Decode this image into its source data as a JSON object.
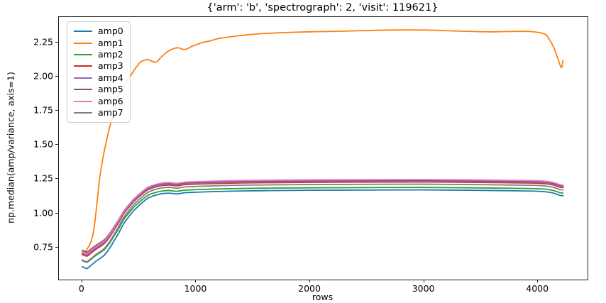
{
  "chart_data": {
    "type": "line",
    "title": "{'arm': 'b', 'spectrograph': 2, 'visit': 119621}",
    "xlabel": "rows",
    "ylabel": "np.median(amp/variance, axis=1)",
    "xlim": [
      -205,
      4435
    ],
    "ylim": [
      0.515,
      2.435
    ],
    "xticks": [
      0,
      1000,
      2000,
      3000,
      4000
    ],
    "yticks": [
      0.75,
      1.0,
      1.25,
      1.5,
      1.75,
      2.0,
      2.25
    ],
    "grid": false,
    "legend_position": "upper left",
    "cluster_shape": {
      "comment": "shared rise profile for amp0,2,3,4,5,6,7: value = start + f * (plateau - start)",
      "x": [
        0,
        40,
        80,
        120,
        160,
        200,
        240,
        280,
        320,
        365,
        410,
        450,
        495,
        535,
        575,
        620,
        665,
        710,
        770,
        830,
        900,
        1000,
        1150,
        1350,
        1600,
        2000,
        2500,
        3000,
        3400,
        3700,
        3950,
        4060,
        4130,
        4190,
        4220
      ],
      "f": [
        0,
        -0.025,
        0.02,
        0.07,
        0.11,
        0.16,
        0.24,
        0.34,
        0.44,
        0.565,
        0.655,
        0.73,
        0.795,
        0.85,
        0.895,
        0.925,
        0.945,
        0.958,
        0.962,
        0.952,
        0.968,
        0.975,
        0.983,
        0.99,
        0.995,
        1.0,
        1.003,
        1.005,
        1.0,
        0.995,
        0.99,
        0.982,
        0.965,
        0.935,
        0.928
      ]
    },
    "series": [
      {
        "name": "amp0",
        "color": "#1f77b4",
        "start": 0.61,
        "plateau": 1.168
      },
      {
        "name": "amp1",
        "color": "#ff7f0e",
        "points": [
          [
            0,
            0.695
          ],
          [
            40,
            0.735
          ],
          [
            80,
            0.8
          ],
          [
            105,
            0.9
          ],
          [
            130,
            1.08
          ],
          [
            155,
            1.27
          ],
          [
            185,
            1.42
          ],
          [
            210,
            1.52
          ],
          [
            240,
            1.63
          ],
          [
            265,
            1.7
          ],
          [
            295,
            1.8
          ],
          [
            320,
            1.86
          ],
          [
            355,
            1.92
          ],
          [
            385,
            1.96
          ],
          [
            420,
            2.0
          ],
          [
            450,
            2.04
          ],
          [
            480,
            2.075
          ],
          [
            510,
            2.105
          ],
          [
            545,
            2.12
          ],
          [
            575,
            2.125
          ],
          [
            610,
            2.112
          ],
          [
            650,
            2.105
          ],
          [
            690,
            2.14
          ],
          [
            730,
            2.17
          ],
          [
            765,
            2.19
          ],
          [
            805,
            2.205
          ],
          [
            845,
            2.21
          ],
          [
            880,
            2.2
          ],
          [
            915,
            2.2
          ],
          [
            960,
            2.22
          ],
          [
            1010,
            2.235
          ],
          [
            1060,
            2.25
          ],
          [
            1120,
            2.26
          ],
          [
            1180,
            2.275
          ],
          [
            1250,
            2.285
          ],
          [
            1340,
            2.295
          ],
          [
            1450,
            2.305
          ],
          [
            1600,
            2.315
          ],
          [
            1800,
            2.322
          ],
          [
            2000,
            2.327
          ],
          [
            2200,
            2.33
          ],
          [
            2450,
            2.335
          ],
          [
            2700,
            2.34
          ],
          [
            3000,
            2.34
          ],
          [
            3200,
            2.335
          ],
          [
            3400,
            2.33
          ],
          [
            3600,
            2.327
          ],
          [
            3800,
            2.33
          ],
          [
            3950,
            2.328
          ],
          [
            4060,
            2.31
          ],
          [
            4100,
            2.27
          ],
          [
            4140,
            2.21
          ],
          [
            4175,
            2.13
          ],
          [
            4205,
            2.065
          ],
          [
            4220,
            2.12
          ]
        ]
      },
      {
        "name": "amp2",
        "color": "#2ca02c",
        "start": 0.655,
        "plateau": 1.186
      },
      {
        "name": "amp3",
        "color": "#d62728",
        "start": 0.7,
        "plateau": 1.226
      },
      {
        "name": "amp4",
        "color": "#9467bd",
        "start": 0.71,
        "plateau": 1.232
      },
      {
        "name": "amp5",
        "color": "#8c564b",
        "start": 0.73,
        "plateau": 1.238
      },
      {
        "name": "amp6",
        "color": "#e377c2",
        "start": 0.72,
        "plateau": 1.244
      },
      {
        "name": "amp7",
        "color": "#7f7f7f",
        "start": 0.66,
        "plateau": 1.21
      }
    ],
    "line_width": 1.8
  }
}
